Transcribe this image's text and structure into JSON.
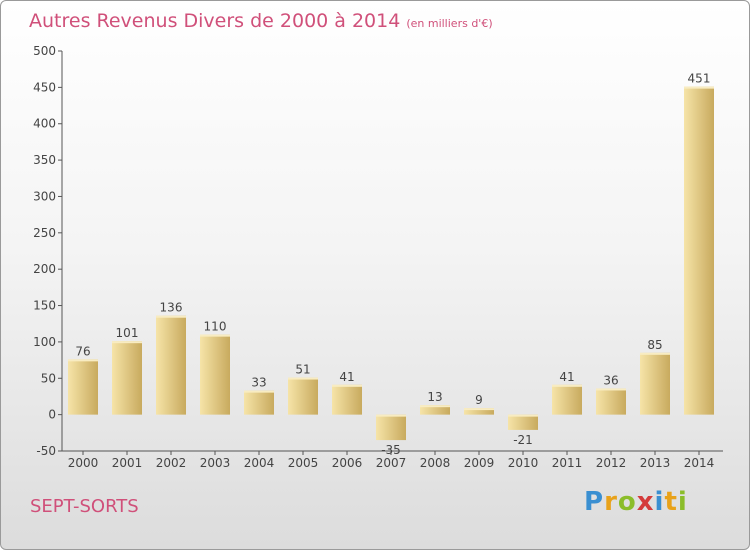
{
  "title": "Autres Revenus Divers de 2000 à 2014",
  "subtitle": "(en milliers d'€)",
  "commune": "SEPT-SORTS",
  "logo": {
    "letters": [
      "P",
      "r",
      "o",
      "x",
      "i",
      "t",
      "i"
    ],
    "colors": [
      "#3a8fd1",
      "#e8a21a",
      "#8bbd2a",
      "#d43b3b",
      "#3a8fd1",
      "#e8a21a",
      "#8bbd2a"
    ]
  },
  "colors": {
    "title": "#d0507a",
    "bar_light": "#f5e2a4",
    "bar_dark": "#c9ab5e",
    "axis": "#555555"
  },
  "chart_data": {
    "type": "bar",
    "categories": [
      "2000",
      "2001",
      "2002",
      "2003",
      "2004",
      "2005",
      "2006",
      "2007",
      "2008",
      "2009",
      "2010",
      "2011",
      "2012",
      "2013",
      "2014"
    ],
    "values": [
      76,
      101,
      136,
      110,
      33,
      51,
      41,
      -35,
      13,
      9,
      -21,
      41,
      36,
      85,
      451
    ],
    "ylim": [
      -50,
      500
    ],
    "yticks": [
      -50,
      0,
      50,
      100,
      150,
      200,
      250,
      300,
      350,
      400,
      450,
      500
    ],
    "grid": false,
    "data_labels": true
  }
}
